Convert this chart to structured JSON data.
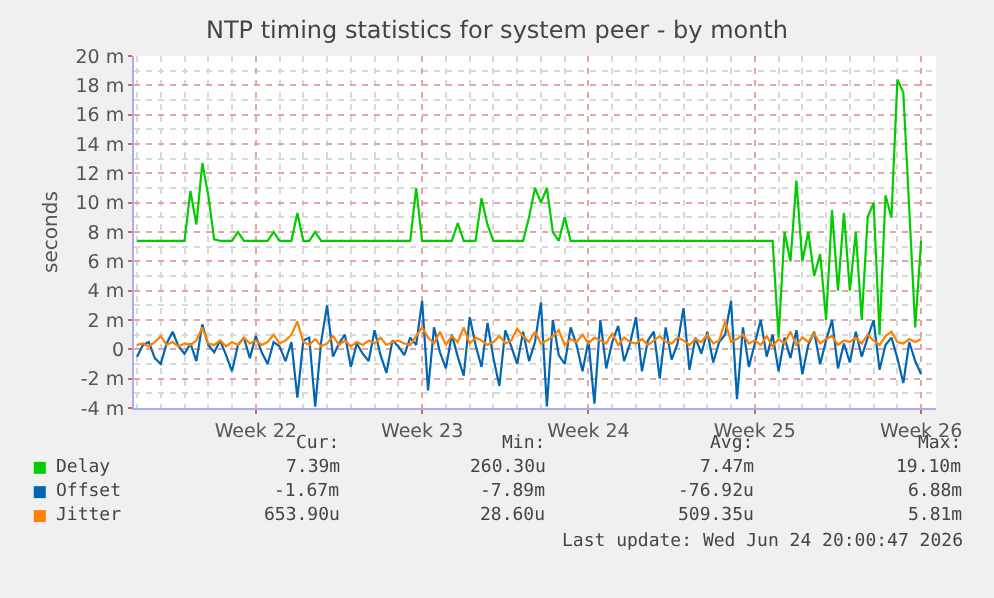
{
  "chart_data": {
    "type": "line",
    "title": "NTP timing statistics for system peer - by month",
    "ylabel": "seconds",
    "categories": [
      null,
      null,
      null,
      null,
      null,
      null,
      null,
      null,
      null,
      null,
      null,
      null,
      null,
      null,
      null,
      null,
      null,
      null,
      null,
      null,
      "Week 22",
      null,
      null,
      null,
      null,
      null,
      null,
      null,
      null,
      null,
      null,
      null,
      null,
      null,
      null,
      null,
      null,
      null,
      null,
      null,
      null,
      null,
      null,
      null,
      null,
      null,
      null,
      null,
      "Week 23",
      null,
      null,
      null,
      null,
      null,
      null,
      null,
      null,
      null,
      null,
      null,
      null,
      null,
      null,
      null,
      null,
      null,
      null,
      null,
      null,
      null,
      null,
      null,
      null,
      null,
      null,
      null,
      "Week 24",
      null,
      null,
      null,
      null,
      null,
      null,
      null,
      null,
      null,
      null,
      null,
      null,
      null,
      null,
      null,
      null,
      null,
      null,
      null,
      null,
      null,
      null,
      null,
      null,
      null,
      null,
      null,
      "Week 25",
      null,
      null,
      null,
      null,
      null,
      null,
      null,
      null,
      null,
      null,
      null,
      null,
      null,
      null,
      null,
      null,
      null,
      null,
      null,
      null,
      null,
      null,
      null,
      null,
      null,
      null,
      null,
      "Week 26"
    ],
    "series": [
      {
        "name": "Delay",
        "color": "#00cc00",
        "values": [
          7.4,
          7.4,
          7.4,
          7.4,
          7.4,
          7.4,
          7.4,
          7.4,
          7.4,
          10.8,
          8.5,
          12.7,
          10.5,
          7.5,
          7.4,
          7.4,
          7.4,
          8.0,
          7.4,
          7.4,
          7.4,
          7.4,
          7.4,
          8.0,
          7.4,
          7.4,
          7.4,
          9.3,
          7.4,
          7.4,
          8.0,
          7.4,
          7.4,
          7.4,
          7.4,
          7.4,
          7.4,
          7.4,
          7.4,
          7.4,
          7.4,
          7.4,
          7.4,
          7.4,
          7.4,
          7.4,
          7.4,
          11.0,
          7.4,
          7.4,
          7.4,
          7.4,
          7.4,
          7.4,
          8.6,
          7.4,
          7.4,
          7.4,
          10.3,
          8.5,
          7.4,
          7.4,
          7.4,
          7.4,
          7.4,
          7.4,
          9.0,
          11.0,
          10.0,
          11.0,
          8.0,
          7.4,
          9.0,
          7.4,
          7.4,
          7.4,
          7.4,
          7.4,
          7.4,
          7.4,
          7.4,
          7.4,
          7.4,
          7.4,
          7.4,
          7.4,
          7.4,
          7.4,
          7.4,
          7.4,
          7.4,
          7.4,
          7.4,
          7.4,
          7.4,
          7.4,
          7.4,
          7.4,
          7.4,
          7.4,
          7.4,
          7.4,
          7.4,
          7.4,
          7.4,
          7.4,
          7.4,
          7.4,
          0.8,
          8.0,
          6.0,
          11.5,
          6.0,
          8.0,
          5.0,
          6.5,
          2.0,
          9.5,
          4.0,
          9.3,
          4.0,
          8.0,
          2.0,
          9.0,
          10.0,
          1.0,
          10.5,
          9.0,
          18.4,
          17.5,
          9.6,
          1.5,
          7.4
        ]
      },
      {
        "name": "Offset",
        "color": "#0066b3",
        "values": [
          -0.5,
          0.3,
          0.5,
          -0.6,
          -1.0,
          0.4,
          1.2,
          0.2,
          -0.3,
          0.4,
          -0.8,
          1.7,
          0.3,
          -0.2,
          0.6,
          -0.4,
          -1.5,
          0.3,
          0.8,
          -0.6,
          0.9,
          -0.2,
          -1.0,
          0.5,
          0.2,
          -0.8,
          0.5,
          -3.3,
          0.6,
          0.8,
          -3.9,
          0.5,
          3.0,
          -0.5,
          0.4,
          1.0,
          -1.2,
          0.4,
          -0.3,
          -0.8,
          1.3,
          -0.4,
          -1.6,
          0.6,
          0.2,
          -0.4,
          0.8,
          0.3,
          3.3,
          -2.8,
          1.5,
          -0.2,
          -1.3,
          1.0,
          -0.5,
          -1.8,
          2.2,
          0.3,
          -1.2,
          1.8,
          -0.6,
          -2.5,
          1.3,
          0.2,
          -1.0,
          1.2,
          -0.8,
          0.5,
          3.2,
          -3.9,
          2.0,
          -0.4,
          -1.0,
          1.5,
          0.3,
          -1.5,
          0.6,
          -3.7,
          2.0,
          -1.3,
          0.5,
          1.6,
          -0.8,
          0.4,
          2.2,
          -1.5,
          0.6,
          1.2,
          -2.0,
          1.5,
          -0.7,
          0.4,
          2.8,
          -1.4,
          0.8,
          -0.3,
          1.2,
          -0.9,
          0.5,
          1.0,
          3.3,
          -3.4,
          1.5,
          -1.2,
          0.4,
          2.0,
          -0.5,
          1.0,
          -1.5,
          0.8,
          -0.6,
          1.3,
          -1.7,
          0.3,
          1.2,
          -1.0,
          0.6,
          2.0,
          -1.3,
          0.4,
          -0.9,
          1.2,
          -0.5,
          0.8,
          2.0,
          -1.4,
          0.3,
          0.8,
          -0.6,
          -2.3,
          0.5,
          -0.8,
          -1.7
        ]
      },
      {
        "name": "Jitter",
        "color": "#ff8000",
        "values": [
          0.3,
          0.4,
          0.2,
          0.5,
          0.9,
          0.3,
          0.5,
          0.2,
          0.4,
          0.3,
          0.6,
          1.5,
          0.4,
          0.3,
          0.6,
          0.2,
          0.5,
          0.3,
          0.8,
          0.4,
          0.6,
          0.3,
          0.5,
          1.0,
          0.4,
          0.6,
          1.0,
          1.9,
          0.5,
          0.3,
          0.7,
          0.2,
          0.4,
          0.9,
          0.3,
          0.6,
          0.2,
          0.5,
          0.3,
          0.6,
          0.4,
          0.8,
          0.3,
          0.5,
          0.6,
          0.4,
          0.3,
          0.9,
          1.5,
          0.8,
          0.4,
          1.2,
          0.3,
          0.9,
          0.5,
          1.5,
          0.4,
          0.8,
          0.6,
          0.3,
          0.5,
          0.9,
          0.4,
          0.6,
          1.4,
          0.9,
          0.5,
          1.2,
          0.4,
          0.6,
          0.9,
          1.3,
          0.3,
          0.7,
          0.5,
          1.0,
          0.4,
          0.8,
          0.6,
          0.4,
          1.1,
          0.3,
          0.8,
          0.5,
          0.4,
          0.7,
          0.3,
          0.6,
          0.9,
          0.5,
          0.4,
          0.8,
          0.6,
          0.3,
          0.7,
          0.5,
          1.0,
          0.4,
          0.6,
          1.9,
          0.5,
          0.7,
          1.0,
          0.4,
          0.6,
          0.3,
          0.9,
          0.2,
          0.7,
          0.4,
          1.2,
          0.3,
          0.8,
          0.5,
          1.1,
          0.4,
          0.7,
          0.9,
          0.3,
          0.6,
          0.5,
          0.8,
          0.4,
          1.0,
          0.6,
          0.3,
          0.9,
          1.2,
          0.5,
          0.4,
          0.7,
          0.5,
          0.7
        ]
      }
    ],
    "ylim": [
      -4,
      20
    ],
    "yticks": [
      {
        "value": -4,
        "label": "-4 m"
      },
      {
        "value": -2,
        "label": "-2 m"
      },
      0,
      {
        "value": 2,
        "label": "2 m"
      },
      {
        "value": 4,
        "label": "4 m"
      },
      {
        "value": 6,
        "label": "6 m"
      },
      {
        "value": 8,
        "label": "8 m"
      },
      {
        "value": 10,
        "label": "10 m"
      },
      {
        "value": 12,
        "label": "12 m"
      },
      {
        "value": 14,
        "label": "14 m"
      },
      {
        "value": 16,
        "label": "16 m"
      },
      {
        "value": 18,
        "label": "18 m"
      },
      {
        "value": 20,
        "label": "20 m"
      }
    ],
    "grid": true,
    "legend": "bottom left",
    "marker": "none",
    "line_style": "solid",
    "annotations": [
      "Cur:",
      "Min:",
      "Avg:",
      "Max:",
      "7.39m",
      "260.30u",
      "7.47m",
      "19.10m",
      "-1.67m",
      "-7.89m",
      "-76.92u",
      "6.88m",
      "653.90u",
      "28.60u",
      "509.35u",
      "5.81m",
      "Last update: Wed Jun 24 20:00:47 2026"
    ]
  }
}
